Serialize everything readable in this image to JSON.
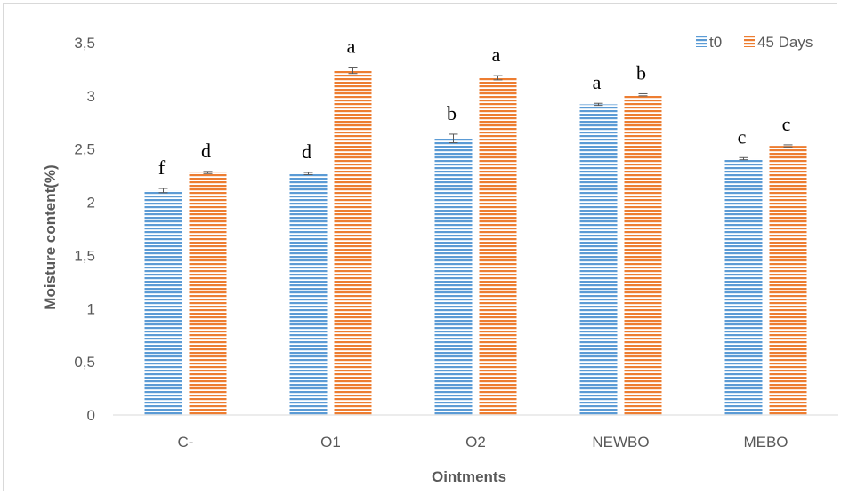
{
  "chart_data": {
    "type": "bar",
    "title": "",
    "xlabel": "Ointments",
    "ylabel": "Moisture content(%)",
    "categories": [
      "C-",
      "O1",
      "O2",
      "NEWBO",
      "MEBO"
    ],
    "ylim": [
      0,
      3.5
    ],
    "yticks": [
      "0",
      "0,5",
      "1",
      "1,5",
      "2",
      "2,5",
      "3",
      "3,5"
    ],
    "grid": false,
    "legend_position": "top-right",
    "series": [
      {
        "name": "t0",
        "color": "#5b9bd5",
        "values": [
          2.11,
          2.27,
          2.6,
          2.92,
          2.41
        ],
        "errors": [
          0.02,
          0.01,
          0.04,
          0.01,
          0.01
        ],
        "labels": [
          "f",
          "d",
          "b",
          "a",
          "c"
        ]
      },
      {
        "name": "45 Days",
        "color": "#ed7d31",
        "values": [
          2.28,
          3.24,
          3.17,
          3.01,
          2.53
        ],
        "errors": [
          0.01,
          0.03,
          0.02,
          0.01,
          0.01
        ],
        "labels": [
          "d",
          "a",
          "a",
          "b",
          "c"
        ]
      }
    ]
  }
}
